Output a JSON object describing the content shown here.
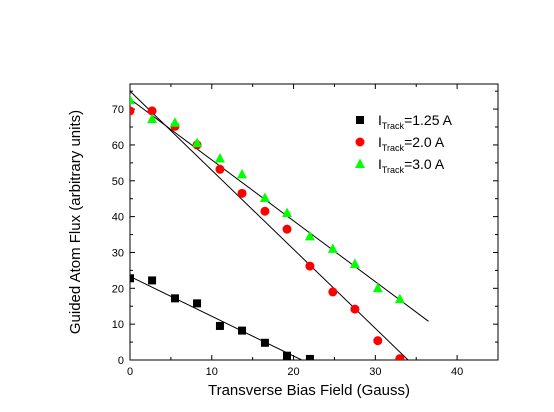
{
  "chart_data": {
    "type": "scatter",
    "title": "",
    "xlabel": "Transverse Bias Field (Gauss)",
    "ylabel": "Guided Atom Flux (arbitrary units)",
    "xlim": [
      0,
      45
    ],
    "ylim": [
      0,
      77
    ],
    "xticks": [
      0,
      10,
      20,
      30,
      40
    ],
    "yticks": [
      0,
      10,
      20,
      30,
      40,
      50,
      60,
      70
    ],
    "legend_position": "top-right",
    "series": [
      {
        "name": "I_Track=1.25 A",
        "legend_main": "I",
        "legend_sub": "Track",
        "legend_rest": "=1.25 A",
        "marker": "square",
        "color": "#000000",
        "x": [
          0,
          2.7,
          5.5,
          8.2,
          11.0,
          13.7,
          16.5,
          19.2,
          22.0
        ],
        "y": [
          22.8,
          22.2,
          17.2,
          15.8,
          9.5,
          8.2,
          4.8,
          1.2,
          0.3
        ],
        "fit": {
          "x": [
            0,
            21
          ],
          "y": [
            23.3,
            0
          ]
        }
      },
      {
        "name": "I_Track=2.0 A",
        "legend_main": "I",
        "legend_sub": "Track",
        "legend_rest": "=2.0 A",
        "marker": "circle",
        "color": "#ff0000",
        "x": [
          0,
          2.7,
          5.5,
          8.2,
          11.0,
          13.7,
          16.5,
          19.2,
          22.0,
          24.8,
          27.5,
          30.3,
          33.0
        ],
        "y": [
          69.5,
          69.5,
          65.2,
          60.0,
          53.2,
          46.5,
          41.5,
          36.5,
          26.2,
          19.0,
          14.2,
          5.4,
          0.4
        ],
        "fit": {
          "x": [
            0,
            34.0
          ],
          "y": [
            75.0,
            0
          ]
        }
      },
      {
        "name": "I_Track=3.0 A",
        "legend_main": "I",
        "legend_sub": "Track",
        "legend_rest": "=3.0 A",
        "marker": "triangle",
        "color": "#00ff00",
        "x": [
          0,
          2.7,
          5.5,
          8.2,
          11.0,
          13.7,
          16.5,
          19.2,
          22.0,
          24.8,
          27.5,
          30.3,
          33.0
        ],
        "y": [
          72.5,
          67.2,
          66.2,
          60.5,
          56.2,
          51.8,
          45.2,
          41.0,
          34.5,
          31.0,
          26.8,
          20.0,
          17.0
        ],
        "fit": {
          "x": [
            0,
            36.5
          ],
          "y": [
            72.8,
            10.8
          ]
        }
      }
    ]
  }
}
